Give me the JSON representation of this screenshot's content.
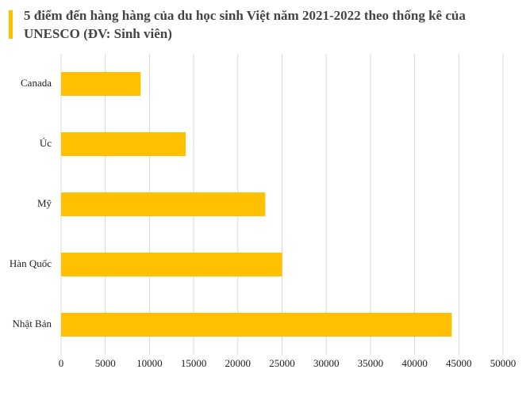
{
  "chart_data": {
    "type": "barh",
    "title": "5 điểm đến hàng hàng của du học sinh Việt năm 2021-2022 theo thống kê của UNESCO (ĐV: Sinh viên)",
    "categories": [
      "Canada",
      "Úc",
      "Mỹ",
      "Hàn Quốc",
      "Nhật Bản"
    ],
    "values": [
      9000,
      14100,
      23100,
      25000,
      44200
    ],
    "color": "#ffc000",
    "xlim": [
      0,
      50000
    ],
    "xticks": [
      0,
      5000,
      10000,
      15000,
      20000,
      25000,
      30000,
      35000,
      40000,
      45000,
      50000
    ],
    "grid": true
  }
}
